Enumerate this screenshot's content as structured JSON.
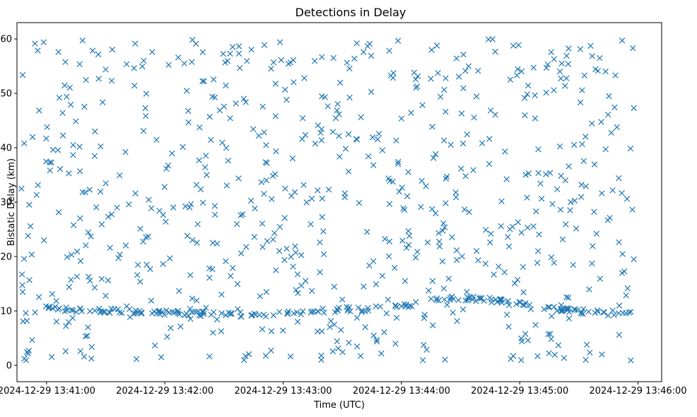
{
  "chart_data": {
    "type": "scatter",
    "title": "Detections in Delay",
    "xlabel": "Time (UTC)",
    "ylabel": "Bistatic Delay (km)",
    "marker": "x",
    "color": "#1f77b4",
    "x_unit": "seconds after 2024-12-29 13:41:00",
    "xlim": [
      -15,
      312
    ],
    "ylim": [
      -3,
      63
    ],
    "x_tick_values": [
      0,
      60,
      120,
      180,
      240,
      300
    ],
    "x_tick_labels": [
      "2024-12-29 13:41:00",
      "2024-12-29 13:42:00",
      "2024-12-29 13:43:00",
      "2024-12-29 13:44:00",
      "2024-12-29 13:45:00",
      "2024-12-29 13:46:00"
    ],
    "y_tick_values": [
      0,
      10,
      20,
      30,
      40,
      50,
      60
    ],
    "y_tick_labels": [
      "0",
      "10",
      "20",
      "30",
      "40",
      "50",
      "60"
    ],
    "grid": false,
    "approx_point_count": 900,
    "clutter_delay_range_km": [
      0.8,
      60
    ],
    "x_range_s": [
      -13,
      298
    ],
    "ridge": [
      [
        -10,
        10.5
      ],
      [
        20,
        10.2
      ],
      [
        50,
        9.8
      ],
      [
        80,
        9.5
      ],
      [
        110,
        9.3
      ],
      [
        130,
        9.8
      ],
      [
        150,
        10.3
      ],
      [
        170,
        10.6
      ],
      [
        185,
        11.2
      ],
      [
        200,
        12.1
      ],
      [
        210,
        12.3
      ],
      [
        225,
        12.0
      ],
      [
        240,
        11.2
      ],
      [
        255,
        10.6
      ],
      [
        270,
        10.0
      ],
      [
        285,
        9.7
      ],
      [
        298,
        9.6
      ]
    ]
  }
}
